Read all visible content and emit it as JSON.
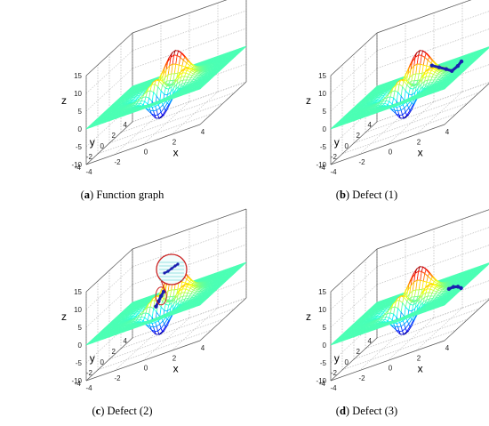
{
  "chart_data": [
    {
      "type": "surface",
      "panel": "a",
      "caption_label": "a",
      "caption_text": "Function graph",
      "xlabel": "x",
      "ylabel": "y",
      "zlabel": "z",
      "xlim": [
        -4,
        4
      ],
      "ylim": [
        -4,
        4
      ],
      "zlim": [
        -10,
        15
      ],
      "x_ticks": [
        "-4",
        "-2",
        "0",
        "2",
        "4"
      ],
      "y_ticks": [
        "-4",
        "-2",
        "0",
        "2",
        "4"
      ],
      "z_ticks": [
        "-10",
        "-5",
        "0",
        "5",
        "10",
        "15"
      ],
      "grid": true,
      "defect": null
    },
    {
      "type": "surface",
      "panel": "b",
      "caption_label": "b",
      "caption_text": "Defect (1)",
      "xlabel": "x",
      "ylabel": "y",
      "zlabel": "z",
      "xlim": [
        -4,
        4
      ],
      "ylim": [
        -4,
        4
      ],
      "zlim": [
        -10,
        15
      ],
      "x_ticks": [
        "-4",
        "-2",
        "0",
        "2",
        "4"
      ],
      "y_ticks": [
        "-4",
        "-2",
        "0",
        "2",
        "4"
      ],
      "z_ticks": [
        "-10",
        "-5",
        "0",
        "5",
        "10",
        "15"
      ],
      "grid": true,
      "defect": {
        "points": [
          [
            1.0,
            1.2,
            3.0
          ],
          [
            1.5,
            1.2,
            1.8
          ],
          [
            2.0,
            1.2,
            0.6
          ],
          [
            2.4,
            1.2,
            -0.5
          ],
          [
            2.9,
            1.0,
            0.5
          ],
          [
            3.2,
            0.9,
            1.5
          ]
        ],
        "color": "#1a20b0"
      }
    },
    {
      "type": "surface",
      "panel": "c",
      "caption_label": "c",
      "caption_text": "Defect (2)",
      "xlabel": "x",
      "ylabel": "y",
      "zlabel": "z",
      "xlim": [
        -4,
        4
      ],
      "ylim": [
        -4,
        4
      ],
      "zlim": [
        -10,
        15
      ],
      "x_ticks": [
        "-4",
        "-2",
        "0",
        "2",
        "4"
      ],
      "y_ticks": [
        "-4",
        "-2",
        "0",
        "2",
        "4"
      ],
      "z_ticks": [
        "-10",
        "-5",
        "0",
        "5",
        "10",
        "15"
      ],
      "grid": true,
      "defect": {
        "points": [
          [
            -0.6,
            -0.3,
            0.5
          ],
          [
            -0.5,
            -0.1,
            1.5
          ],
          [
            -0.4,
            0.1,
            2.6
          ],
          [
            -0.3,
            0.3,
            3.4
          ]
        ],
        "color": "#1a20b0"
      },
      "inset": true
    },
    {
      "type": "surface",
      "panel": "d",
      "caption_label": "d",
      "caption_text": "Defect (3)",
      "xlabel": "x",
      "ylabel": "y",
      "zlabel": "z",
      "xlim": [
        -4,
        4
      ],
      "ylim": [
        -4,
        4
      ],
      "zlim": [
        -10,
        15
      ],
      "x_ticks": [
        "-4",
        "-2",
        "0",
        "2",
        "4"
      ],
      "y_ticks": [
        "-4",
        "-2",
        "0",
        "2",
        "4"
      ],
      "z_ticks": [
        "-10",
        "-5",
        "0",
        "5",
        "10",
        "15"
      ],
      "grid": true,
      "defect": {
        "points": [
          [
            2.6,
            0.2,
            0.2
          ],
          [
            3.0,
            0.0,
            0.5
          ],
          [
            3.4,
            -0.2,
            0.3
          ],
          [
            3.7,
            -0.4,
            -0.2
          ]
        ],
        "color": "#1a20b0"
      }
    }
  ]
}
